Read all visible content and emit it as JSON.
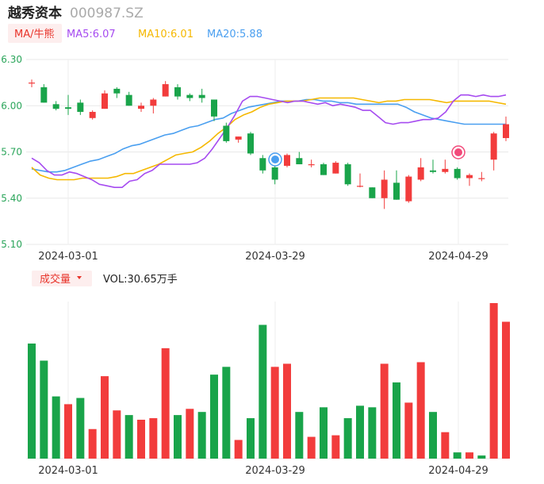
{
  "header": {
    "name": "越秀资本",
    "code": "000987.SZ"
  },
  "ma_legend": [
    {
      "label": "MA/牛熊",
      "color": "#e8332a"
    },
    {
      "label": "MA5:6.07",
      "color": "#a64bf0"
    },
    {
      "label": "MA10:6.01",
      "color": "#f5b800"
    },
    {
      "label": "MA20:5.88",
      "color": "#4a9ff0"
    }
  ],
  "volume_header": {
    "label": "成交量",
    "value": "VOL:30.65万手"
  },
  "colors": {
    "up": "#f23c3c",
    "down": "#19a44a",
    "ma5": "#a64bf0",
    "ma10": "#f5b800",
    "ma20": "#4a9ff0",
    "axis_text_price": "#2aa55a",
    "axis_text_date": "#333333"
  },
  "chart_data": [
    {
      "type": "candlestick",
      "x_labels": [
        "2024-03-01",
        "2024-03-29",
        "2024-04-29"
      ],
      "y_ticks": [
        6.3,
        6.0,
        5.7,
        5.4,
        5.1
      ],
      "ylim": [
        5.1,
        6.3
      ],
      "grid": true,
      "candles": [
        {
          "o": 6.15,
          "h": 6.17,
          "l": 6.12,
          "c": 6.15
        },
        {
          "o": 6.12,
          "h": 6.14,
          "l": 6.02,
          "c": 6.02
        },
        {
          "o": 6.01,
          "h": 6.03,
          "l": 5.97,
          "c": 5.98
        },
        {
          "o": 5.99,
          "h": 6.07,
          "l": 5.94,
          "c": 5.98
        },
        {
          "o": 6.02,
          "h": 6.04,
          "l": 5.94,
          "c": 5.96
        },
        {
          "o": 5.92,
          "h": 5.97,
          "l": 5.91,
          "c": 5.96
        },
        {
          "o": 5.98,
          "h": 6.1,
          "l": 5.98,
          "c": 6.08
        },
        {
          "o": 6.11,
          "h": 6.12,
          "l": 6.05,
          "c": 6.08
        },
        {
          "o": 6.07,
          "h": 6.09,
          "l": 6.0,
          "c": 6.0
        },
        {
          "o": 5.98,
          "h": 6.02,
          "l": 5.96,
          "c": 6.0
        },
        {
          "o": 6.0,
          "h": 6.05,
          "l": 5.95,
          "c": 6.04
        },
        {
          "o": 6.06,
          "h": 6.16,
          "l": 6.06,
          "c": 6.14
        },
        {
          "o": 6.12,
          "h": 6.14,
          "l": 6.04,
          "c": 6.06
        },
        {
          "o": 6.07,
          "h": 6.08,
          "l": 6.03,
          "c": 6.05
        },
        {
          "o": 6.07,
          "h": 6.11,
          "l": 6.02,
          "c": 6.05
        },
        {
          "o": 6.04,
          "h": 6.04,
          "l": 5.9,
          "c": 5.93
        },
        {
          "o": 5.87,
          "h": 5.89,
          "l": 5.76,
          "c": 5.77
        },
        {
          "o": 5.78,
          "h": 5.8,
          "l": 5.76,
          "c": 5.8
        },
        {
          "o": 5.82,
          "h": 5.83,
          "l": 5.68,
          "c": 5.69
        },
        {
          "o": 5.66,
          "h": 5.68,
          "l": 5.56,
          "c": 5.58
        },
        {
          "o": 5.6,
          "h": 5.64,
          "l": 5.49,
          "c": 5.52
        },
        {
          "o": 5.61,
          "h": 5.69,
          "l": 5.6,
          "c": 5.68
        },
        {
          "o": 5.66,
          "h": 5.7,
          "l": 5.62,
          "c": 5.62
        },
        {
          "o": 5.62,
          "h": 5.65,
          "l": 5.6,
          "c": 5.62
        },
        {
          "o": 5.62,
          "h": 5.63,
          "l": 5.55,
          "c": 5.55
        },
        {
          "o": 5.56,
          "h": 5.64,
          "l": 5.56,
          "c": 5.63
        },
        {
          "o": 5.62,
          "h": 5.63,
          "l": 5.48,
          "c": 5.49
        },
        {
          "o": 5.48,
          "h": 5.56,
          "l": 5.47,
          "c": 5.48
        },
        {
          "o": 5.47,
          "h": 5.47,
          "l": 5.4,
          "c": 5.4
        },
        {
          "o": 5.4,
          "h": 5.58,
          "l": 5.33,
          "c": 5.52
        },
        {
          "o": 5.5,
          "h": 5.58,
          "l": 5.39,
          "c": 5.39
        },
        {
          "o": 5.38,
          "h": 5.55,
          "l": 5.37,
          "c": 5.54
        },
        {
          "o": 5.52,
          "h": 5.66,
          "l": 5.51,
          "c": 5.6
        },
        {
          "o": 5.58,
          "h": 5.65,
          "l": 5.56,
          "c": 5.57
        },
        {
          "o": 5.57,
          "h": 5.65,
          "l": 5.56,
          "c": 5.59
        },
        {
          "o": 5.59,
          "h": 5.6,
          "l": 5.52,
          "c": 5.53
        },
        {
          "o": 5.53,
          "h": 5.56,
          "l": 5.48,
          "c": 5.55
        },
        {
          "o": 5.53,
          "h": 5.57,
          "l": 5.51,
          "c": 5.53
        },
        {
          "o": 5.65,
          "h": 5.83,
          "l": 5.58,
          "c": 5.82
        },
        {
          "o": 5.79,
          "h": 5.93,
          "l": 5.77,
          "c": 5.88
        }
      ],
      "ma5": [
        5.66,
        5.63,
        5.58,
        5.55,
        5.55,
        5.57,
        5.56,
        5.54,
        5.52,
        5.49,
        5.48,
        5.47,
        5.47,
        5.51,
        5.52,
        5.56,
        5.58,
        5.62,
        5.62,
        5.62,
        5.62,
        5.62,
        5.63,
        5.66,
        5.72,
        5.79,
        5.86,
        5.94,
        6.03,
        6.06,
        6.06,
        6.05,
        6.04,
        6.03,
        6.02,
        6.03,
        6.03,
        6.02,
        6.01,
        6.02,
        6.0,
        6.01,
        6.0,
        5.99,
        5.97,
        5.97,
        5.93,
        5.89,
        5.88,
        5.89,
        5.89,
        5.9,
        5.91,
        5.91,
        5.92,
        5.96,
        6.03,
        6.07,
        6.07,
        6.06,
        6.07,
        6.06,
        6.06,
        6.07
      ],
      "ma10": [
        5.6,
        5.55,
        5.53,
        5.52,
        5.52,
        5.52,
        5.53,
        5.53,
        5.53,
        5.53,
        5.54,
        5.56,
        5.56,
        5.58,
        5.6,
        5.62,
        5.65,
        5.68,
        5.69,
        5.7,
        5.73,
        5.77,
        5.82,
        5.86,
        5.91,
        5.94,
        5.96,
        5.99,
        6.01,
        6.02,
        6.03,
        6.03,
        6.03,
        6.04,
        6.05,
        6.05,
        6.05,
        6.05,
        6.05,
        6.04,
        6.03,
        6.02,
        6.03,
        6.03,
        6.04,
        6.04,
        6.04,
        6.04,
        6.03,
        6.02,
        6.03,
        6.03,
        6.03,
        6.03,
        6.03,
        6.02,
        6.01
      ],
      "ma20": [
        5.59,
        5.58,
        5.57,
        5.57,
        5.58,
        5.6,
        5.62,
        5.64,
        5.65,
        5.67,
        5.69,
        5.72,
        5.74,
        5.75,
        5.77,
        5.79,
        5.81,
        5.82,
        5.84,
        5.86,
        5.87,
        5.89,
        5.91,
        5.92,
        5.95,
        5.97,
        5.99,
        6.0,
        6.01,
        6.02,
        6.03,
        6.03,
        6.03,
        6.04,
        6.04,
        6.03,
        6.03,
        6.02,
        6.02,
        6.01,
        6.01,
        6.01,
        6.01,
        6.01,
        6.01,
        5.99,
        5.96,
        5.94,
        5.92,
        5.91,
        5.9,
        5.89,
        5.88,
        5.88,
        5.88,
        5.88,
        5.88,
        5.88
      ]
    },
    {
      "type": "bar",
      "title": "成交量",
      "x_labels": [
        "2024-03-01",
        "2024-03-29",
        "2024-04-29"
      ],
      "values": [
        0.74,
        0.63,
        0.4,
        0.35,
        0.39,
        0.19,
        0.53,
        0.31,
        0.28,
        0.25,
        0.26,
        0.71,
        0.28,
        0.32,
        0.3,
        0.54,
        0.59,
        0.12,
        0.26,
        0.86,
        0.59,
        0.61,
        0.3,
        0.14,
        0.33,
        0.15,
        0.26,
        0.34,
        0.33,
        0.61,
        0.49,
        0.36,
        0.62,
        0.3,
        0.17,
        0.04,
        0.04,
        0.02,
        1.0,
        0.88
      ],
      "directions": [
        "down",
        "down",
        "down",
        "up",
        "down",
        "up",
        "up",
        "up",
        "down",
        "up",
        "up",
        "up",
        "down",
        "up",
        "down",
        "down",
        "down",
        "up",
        "down",
        "down",
        "up",
        "up",
        "down",
        "up",
        "down",
        "up",
        "down",
        "down",
        "down",
        "up",
        "down",
        "up",
        "up",
        "down",
        "up",
        "down",
        "up",
        "down",
        "up",
        "up"
      ]
    }
  ]
}
